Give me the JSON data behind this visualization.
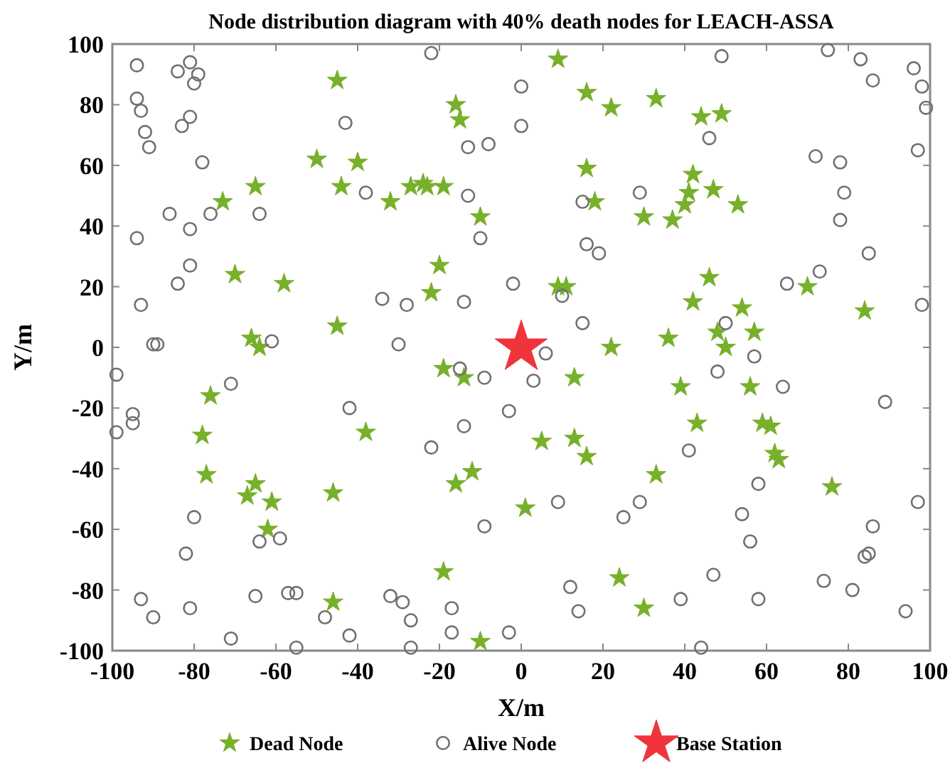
{
  "chart_data": {
    "type": "scatter",
    "title": "Node distribution diagram with 40% death nodes for  LEACH-ASSA",
    "xlabel": "X/m",
    "ylabel": "Y/m",
    "xlim": [
      -100,
      100
    ],
    "ylim": [
      -100,
      100
    ],
    "xticks": [
      -100,
      -80,
      -60,
      -40,
      -20,
      0,
      20,
      40,
      60,
      80,
      100
    ],
    "yticks": [
      -100,
      -80,
      -60,
      -40,
      -20,
      0,
      20,
      40,
      60,
      80,
      100
    ],
    "grid": false,
    "legend": "bottom",
    "series": [
      {
        "name": "Dead Node",
        "color": "#77b02a",
        "marker": "star",
        "x": [
          -45,
          -16,
          -15,
          -50,
          -40,
          -44,
          -65,
          -73,
          -32,
          -27,
          -24,
          -23,
          -19,
          -10,
          -20,
          -22,
          -70,
          -58,
          -45,
          -66,
          -64,
          9,
          16,
          22,
          33,
          44,
          49,
          16,
          42,
          41,
          47,
          40,
          53,
          18,
          30,
          37,
          46,
          9,
          11,
          70,
          42,
          54,
          84,
          36,
          22,
          48,
          57,
          50,
          -19,
          -14,
          -76,
          -78,
          -77,
          -38,
          -12,
          -16,
          -65,
          -67,
          -61,
          -46,
          -62,
          1,
          -19,
          -46,
          -10,
          13,
          39,
          56,
          43,
          59,
          61,
          5,
          13,
          16,
          62,
          63,
          33,
          76,
          24,
          30
        ],
        "values": [
          88,
          80,
          75,
          62,
          61,
          53,
          53,
          48,
          48,
          53,
          54,
          53,
          53,
          43,
          27,
          18,
          24,
          21,
          7,
          3,
          0,
          95,
          84,
          79,
          82,
          76,
          77,
          59,
          57,
          51,
          52,
          47,
          47,
          48,
          43,
          42,
          23,
          20,
          20,
          20,
          15,
          13,
          12,
          3,
          0,
          5,
          5,
          0,
          -7,
          -10,
          -16,
          -29,
          -42,
          -28,
          -41,
          -45,
          -45,
          -49,
          -51,
          -48,
          -60,
          -53,
          -74,
          -84,
          -97,
          -10,
          -13,
          -13,
          -25,
          -25,
          -26,
          -31,
          -30,
          -36,
          -35,
          -37,
          -42,
          -46,
          -76,
          -86
        ]
      },
      {
        "name": "Alive Node",
        "color": "#707070",
        "marker": "circle",
        "x": [
          -94,
          -84,
          -81,
          -79,
          -80,
          -94,
          -93,
          -92,
          -91,
          -81,
          -83,
          -78,
          -86,
          -81,
          -76,
          -64,
          -94,
          -81,
          -84,
          -93,
          -90,
          -89,
          -61,
          -43,
          -38,
          -22,
          -13,
          -8,
          0,
          0,
          -13,
          -10,
          -2,
          -34,
          -28,
          -14,
          -30,
          49,
          75,
          83,
          86,
          96,
          98,
          99,
          46,
          72,
          78,
          97,
          29,
          15,
          79,
          78,
          16,
          19,
          85,
          73,
          65,
          10,
          98,
          15,
          50,
          6,
          57,
          -99,
          -71,
          -95,
          -95,
          -99,
          -42,
          -15,
          -9,
          -3,
          -14,
          -22,
          3,
          -80,
          -82,
          -64,
          -59,
          -9,
          -93,
          -90,
          -81,
          -71,
          -65,
          -57,
          -55,
          -55,
          -48,
          -42,
          -32,
          -29,
          -27,
          -27,
          -17,
          -17,
          -3,
          48,
          64,
          89,
          41,
          58,
          9,
          29,
          25,
          54,
          56,
          86,
          97,
          84,
          85,
          74,
          81,
          94,
          47,
          39,
          58,
          12,
          14,
          44
        ],
        "values": [
          93,
          91,
          94,
          90,
          87,
          82,
          78,
          71,
          66,
          76,
          73,
          61,
          44,
          39,
          44,
          44,
          36,
          27,
          21,
          14,
          1,
          1,
          2,
          74,
          51,
          97,
          66,
          67,
          86,
          73,
          50,
          36,
          21,
          16,
          14,
          15,
          1,
          96,
          98,
          95,
          88,
          92,
          86,
          79,
          69,
          63,
          61,
          65,
          51,
          48,
          51,
          42,
          34,
          31,
          31,
          25,
          21,
          17,
          14,
          8,
          8,
          -2,
          -3,
          -9,
          -12,
          -22,
          -25,
          -28,
          -20,
          -7,
          -10,
          -21,
          -26,
          -33,
          -11,
          -56,
          -68,
          -64,
          -63,
          -59,
          -83,
          -89,
          -86,
          -96,
          -82,
          -81,
          -81,
          -99,
          -89,
          -95,
          -82,
          -84,
          -90,
          -99,
          -86,
          -94,
          -94,
          -8,
          -13,
          -18,
          -34,
          -45,
          -51,
          -51,
          -56,
          -55,
          -64,
          -59,
          -51,
          -69,
          -68,
          -77,
          -80,
          -87,
          -75,
          -83,
          -83,
          -79,
          -87,
          -99
        ]
      },
      {
        "name": "Base Station",
        "color": "#f0343c",
        "marker": "star",
        "x": [
          0
        ],
        "values": [
          0
        ]
      }
    ]
  }
}
